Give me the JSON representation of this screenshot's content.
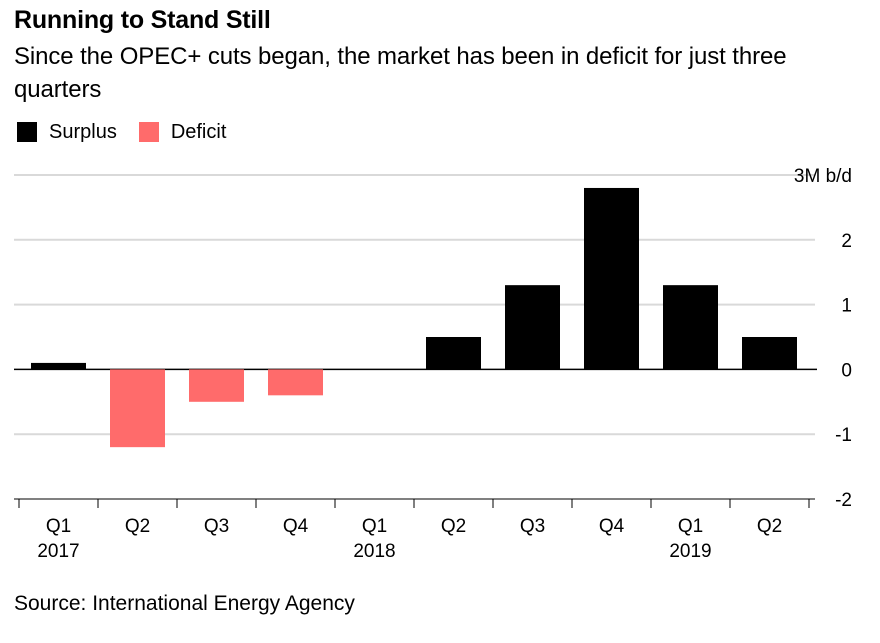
{
  "title": "Running to Stand Still",
  "subtitle": "Since the OPEC+ cuts began, the market has been in deficit for just three quarters",
  "legend": {
    "surplus_label": "Surplus",
    "deficit_label": "Deficit"
  },
  "colors": {
    "surplus": "#000000",
    "deficit": "#ff6b6b",
    "grid": "#d9d9d9",
    "zero_line": "#000000"
  },
  "source": "Source: International Energy Agency",
  "chart_data": {
    "type": "bar",
    "categories": [
      "Q1",
      "Q2",
      "Q3",
      "Q4",
      "Q1",
      "Q2",
      "Q3",
      "Q4",
      "Q1",
      "Q2"
    ],
    "year_labels": [
      "2017",
      "",
      "",
      "",
      "2018",
      "",
      "",
      "",
      "2019",
      ""
    ],
    "values": [
      0.1,
      -1.2,
      -0.5,
      -0.4,
      0.0,
      0.5,
      1.3,
      2.8,
      1.3,
      0.5
    ],
    "yticks": [
      3,
      2,
      1,
      0,
      -1,
      -2
    ],
    "ytick_labels": [
      "3M b/d",
      "2",
      "1",
      "0",
      "-1",
      "-2"
    ],
    "ylim": [
      -2,
      3
    ],
    "legend_position": "top-left",
    "grid": true
  }
}
